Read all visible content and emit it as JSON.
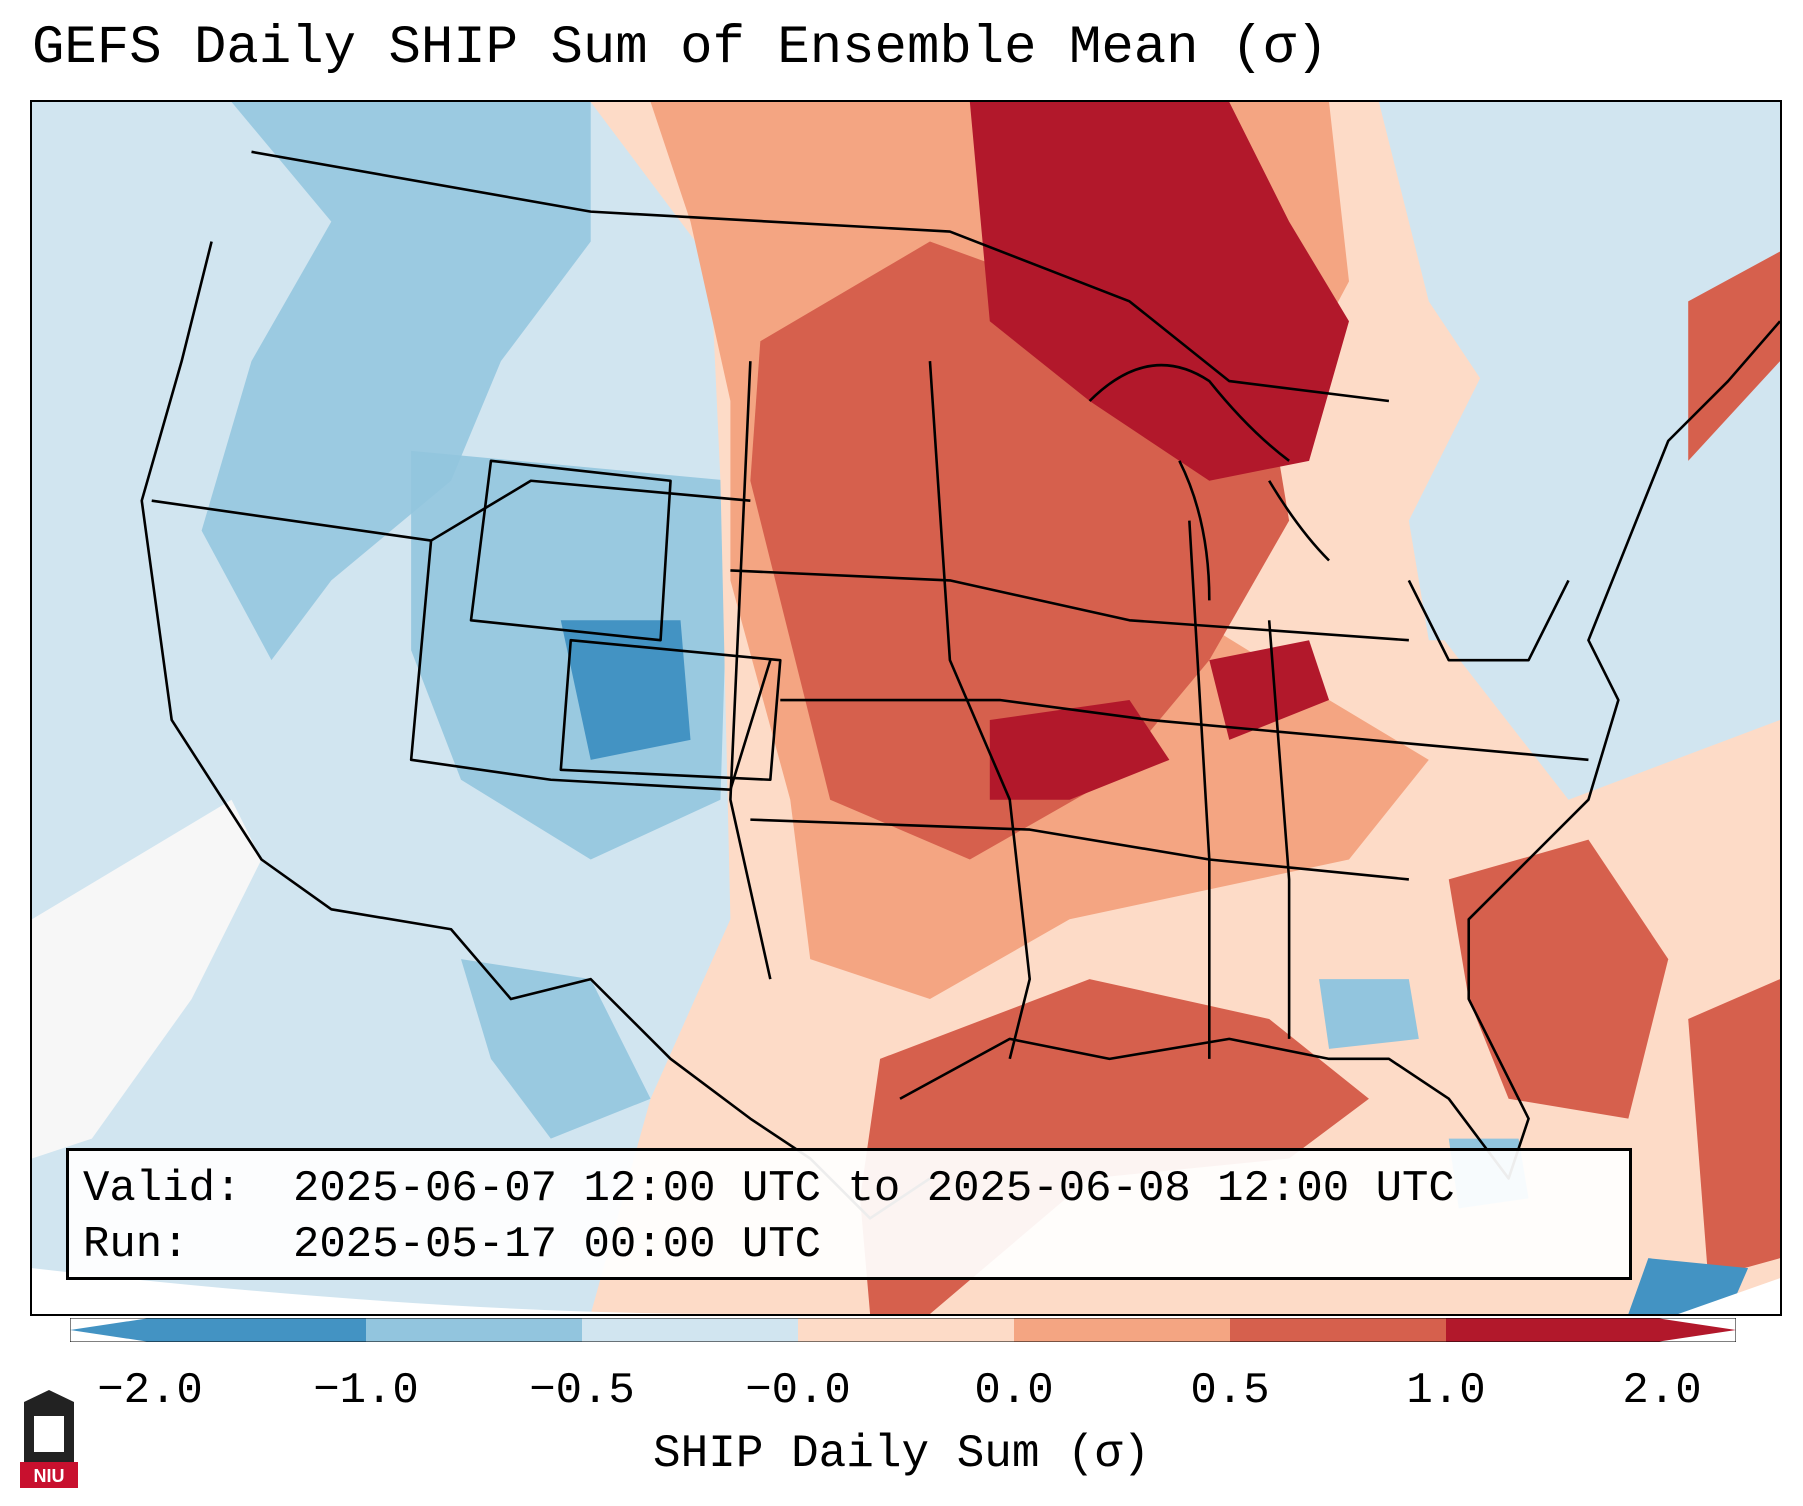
{
  "title": "GEFS Daily SHIP Sum of Ensemble Mean (σ)",
  "info": {
    "valid_label": "Valid:",
    "valid_value": "2025-06-07 12:00 UTC to 2025-06-08 12:00 UTC",
    "run_label": "Run:",
    "run_value": "2025-05-17 00:00 UTC"
  },
  "colorbar": {
    "label": "SHIP Daily Sum (σ)",
    "ticks": [
      "−2.0",
      "−1.0",
      "−0.5",
      "−0.0",
      "0.0",
      "0.5",
      "1.0",
      "2.0"
    ],
    "colors": [
      "#4393c3",
      "#92c5de",
      "#d1e5f0",
      "#f7f7f7",
      "#fddbc7",
      "#f4a582",
      "#d6604d",
      "#b2182b"
    ]
  },
  "logo": {
    "text": "NIU",
    "name": "niu-logo"
  },
  "palette": {
    "ocean": "#d1e5f0",
    "border": "#000000"
  }
}
